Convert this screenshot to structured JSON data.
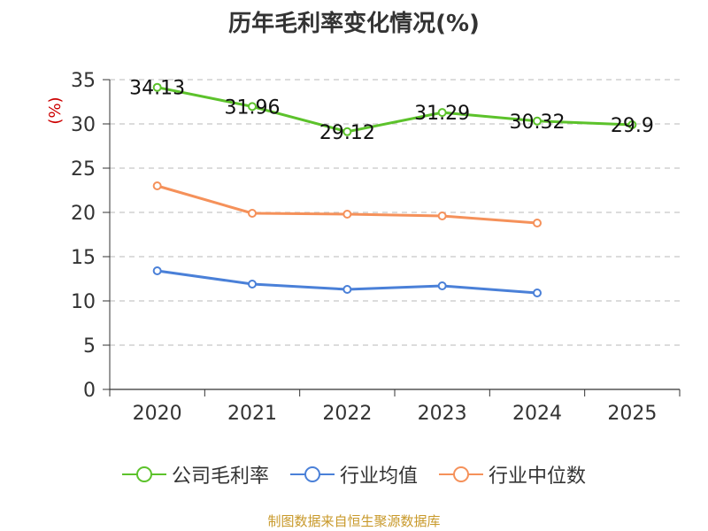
{
  "chart_data": {
    "type": "line",
    "title": "历年毛利率变化情况(%)",
    "ylabel": "(%)",
    "xlabel": "",
    "categories": [
      "2020",
      "2021",
      "2022",
      "2023",
      "2024",
      "2025"
    ],
    "ylim": [
      0,
      35
    ],
    "yticks": [
      0,
      5,
      10,
      15,
      20,
      25,
      30,
      35
    ],
    "grid": true,
    "legend_position": "bottom",
    "series": [
      {
        "name": "公司毛利率",
        "color": "#5cc22b",
        "values": [
          34.13,
          31.96,
          29.12,
          31.29,
          30.32,
          29.9
        ],
        "labels": [
          "34.13",
          "31.96",
          "29.12",
          "31.29",
          "30.32",
          "29.9"
        ]
      },
      {
        "name": "行业均值",
        "color": "#4a80d8",
        "values": [
          13.4,
          11.9,
          11.3,
          11.7,
          10.9,
          null
        ]
      },
      {
        "name": "行业中位数",
        "color": "#f5915a",
        "values": [
          23.0,
          19.9,
          19.8,
          19.6,
          18.8,
          null
        ]
      }
    ],
    "source": "制图数据来自恒生聚源数据库"
  }
}
